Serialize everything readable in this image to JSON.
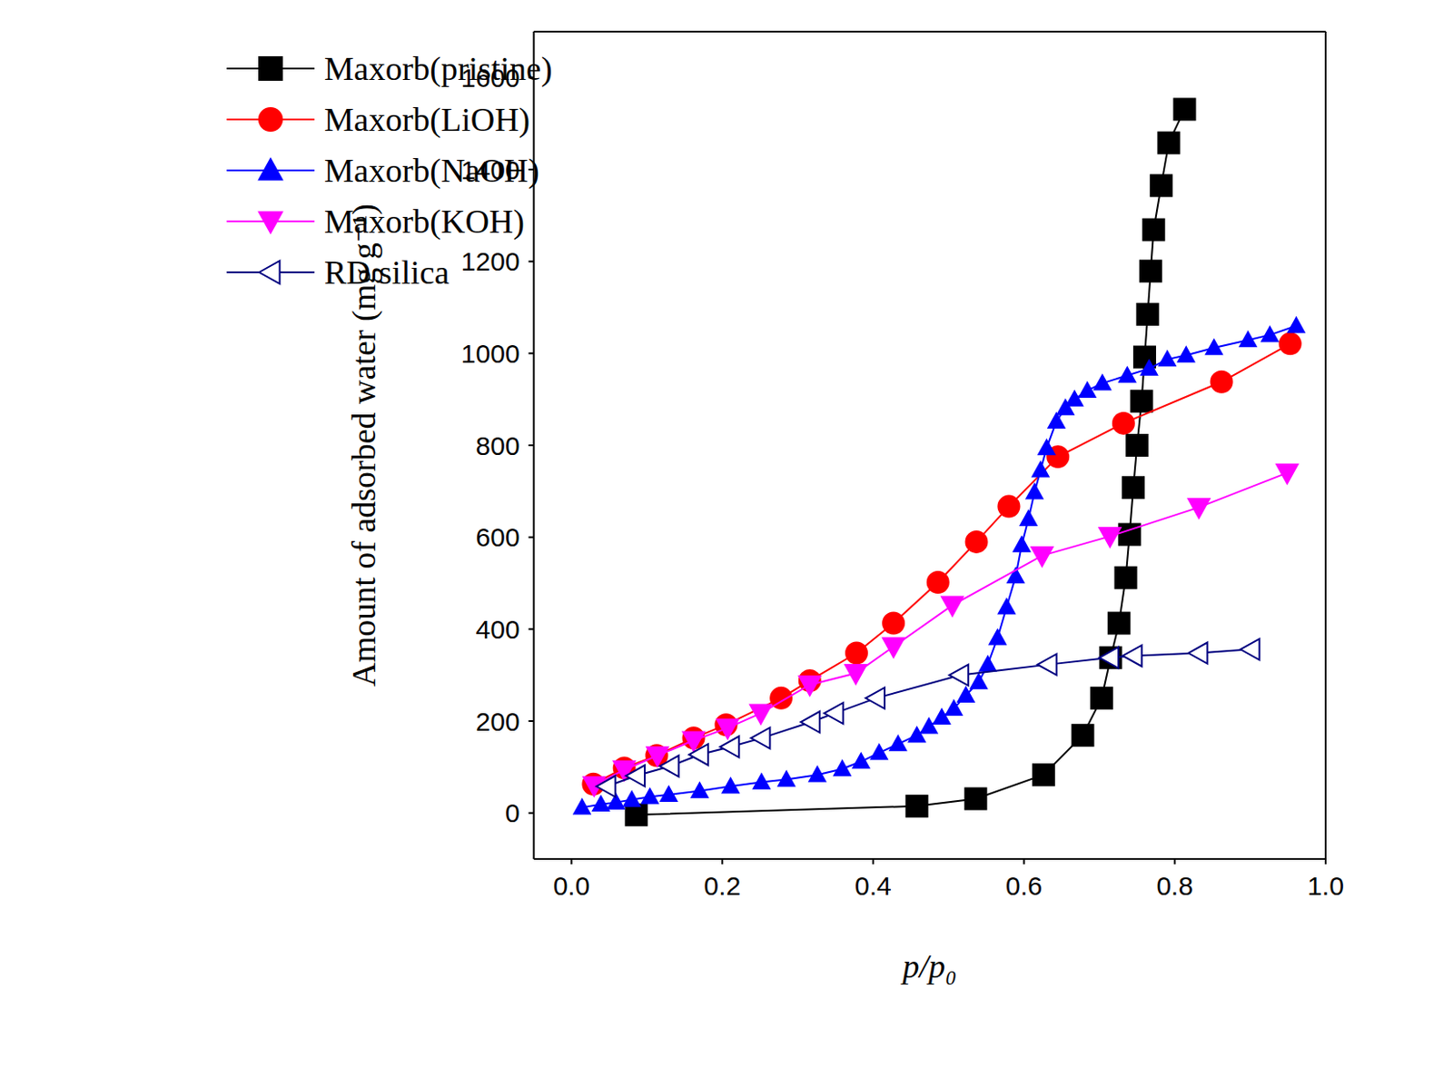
{
  "chart_data": {
    "type": "line",
    "x_label": "p/p₀",
    "y_label": "Amount of adsorbed water (mg g⁻¹)",
    "xlim": [
      -0.05,
      1.0
    ],
    "ylim": [
      -100,
      1700
    ],
    "xticks": [
      {
        "value": 0,
        "label": "0.0"
      },
      0.2,
      0.4,
      0.6,
      0.8,
      {
        "value": 1,
        "label": "1.0"
      }
    ],
    "yticks": [
      0,
      200,
      400,
      600,
      800,
      1000,
      1200,
      1400,
      1600
    ],
    "legend": "upper left",
    "series": [
      {
        "name": "Maxorb(pristine)",
        "color": "#000000",
        "marker": "square",
        "x": [
          0.086,
          0.458,
          0.536,
          0.626,
          0.678,
          0.703,
          0.715,
          0.726,
          0.735,
          0.74,
          0.745,
          0.75,
          0.756,
          0.76,
          0.764,
          0.768,
          0.772,
          0.782,
          0.792,
          0.813
        ],
        "values": [
          -4,
          15,
          31,
          83,
          169,
          250,
          338,
          413,
          512,
          606,
          708,
          800,
          896,
          992,
          1085,
          1179,
          1269,
          1365,
          1458,
          1531
        ]
      },
      {
        "name": "Maxorb(LiOH)",
        "color": "#ff0000",
        "marker": "circle",
        "x": [
          0.029,
          0.07,
          0.113,
          0.162,
          0.205,
          0.278,
          0.316,
          0.378,
          0.427,
          0.486,
          0.537,
          0.58,
          0.645,
          0.732,
          0.862,
          0.953
        ],
        "values": [
          63,
          98,
          125,
          163,
          192,
          250,
          288,
          348,
          413,
          502,
          590,
          667,
          775,
          848,
          938,
          1021
        ]
      },
      {
        "name": "Maxorb(NaOH)",
        "color": "#0000ff",
        "marker": "triangle",
        "x": [
          0.014,
          0.039,
          0.059,
          0.08,
          0.104,
          0.129,
          0.17,
          0.211,
          0.252,
          0.285,
          0.326,
          0.359,
          0.384,
          0.408,
          0.433,
          0.458,
          0.474,
          0.491,
          0.507,
          0.523,
          0.54,
          0.552,
          0.565,
          0.577,
          0.589,
          0.597,
          0.606,
          0.614,
          0.622,
          0.63,
          0.643,
          0.655,
          0.667,
          0.684,
          0.704,
          0.737,
          0.766,
          0.79,
          0.815,
          0.852,
          0.897,
          0.926,
          0.961
        ],
        "values": [
          12,
          19,
          23,
          29,
          35,
          40,
          48,
          58,
          67,
          73,
          83,
          96,
          112,
          131,
          150,
          169,
          188,
          208,
          227,
          256,
          285,
          323,
          381,
          448,
          515,
          583,
          640,
          698,
          746,
          794,
          852,
          881,
          900,
          919,
          935,
          952,
          967,
          987,
          996,
          1012,
          1029,
          1040,
          1060
        ]
      },
      {
        "name": "Maxorb(KOH)",
        "color": "#ff00ff",
        "marker": "triangle-down",
        "x": [
          0.03,
          0.07,
          0.114,
          0.162,
          0.207,
          0.251,
          0.316,
          0.377,
          0.427,
          0.505,
          0.624,
          0.714,
          0.832,
          0.949
        ],
        "values": [
          60,
          94,
          125,
          158,
          185,
          217,
          279,
          304,
          362,
          452,
          560,
          602,
          665,
          740
        ]
      },
      {
        "name": "RD silica",
        "color": "#000080",
        "marker": "triangle-left-open",
        "x": [
          0.047,
          0.086,
          0.131,
          0.17,
          0.211,
          0.252,
          0.318,
          0.349,
          0.404,
          0.515,
          0.632,
          0.714,
          0.745,
          0.832,
          0.901
        ],
        "values": [
          58,
          81,
          102,
          127,
          144,
          163,
          198,
          217,
          250,
          300,
          323,
          338,
          342,
          348,
          356
        ]
      }
    ]
  }
}
